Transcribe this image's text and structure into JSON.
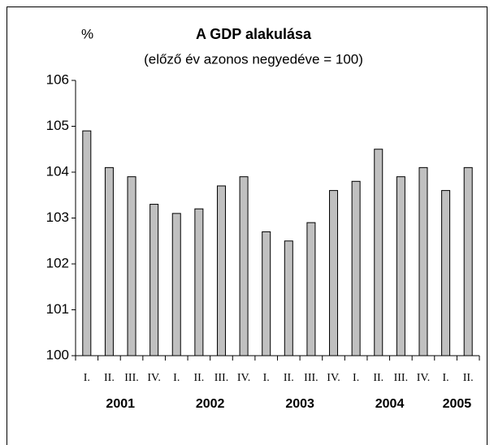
{
  "chart_data": {
    "type": "bar",
    "title": "A GDP alakulása",
    "subtitle": "(előző év azonos negyedéve = 100)",
    "y_label": "%",
    "categories": [
      "I.",
      "II.",
      "III.",
      "IV.",
      "I.",
      "II.",
      "III.",
      "IV.",
      "I.",
      "II.",
      "III.",
      "IV.",
      "I.",
      "II.",
      "III.",
      "IV.",
      "I.",
      "II."
    ],
    "year_labels": [
      "2001",
      "2002",
      "2003",
      "2004",
      "2005"
    ],
    "values": [
      104.9,
      104.1,
      103.9,
      103.3,
      103.1,
      103.2,
      103.7,
      103.9,
      102.7,
      102.5,
      102.9,
      103.6,
      103.8,
      104.5,
      103.9,
      104.1,
      103.6,
      104.1
    ],
    "color": "#c0c0c0",
    "ylim": [
      100,
      106
    ],
    "yticks": [
      100,
      101,
      102,
      103,
      104,
      105,
      106
    ]
  }
}
